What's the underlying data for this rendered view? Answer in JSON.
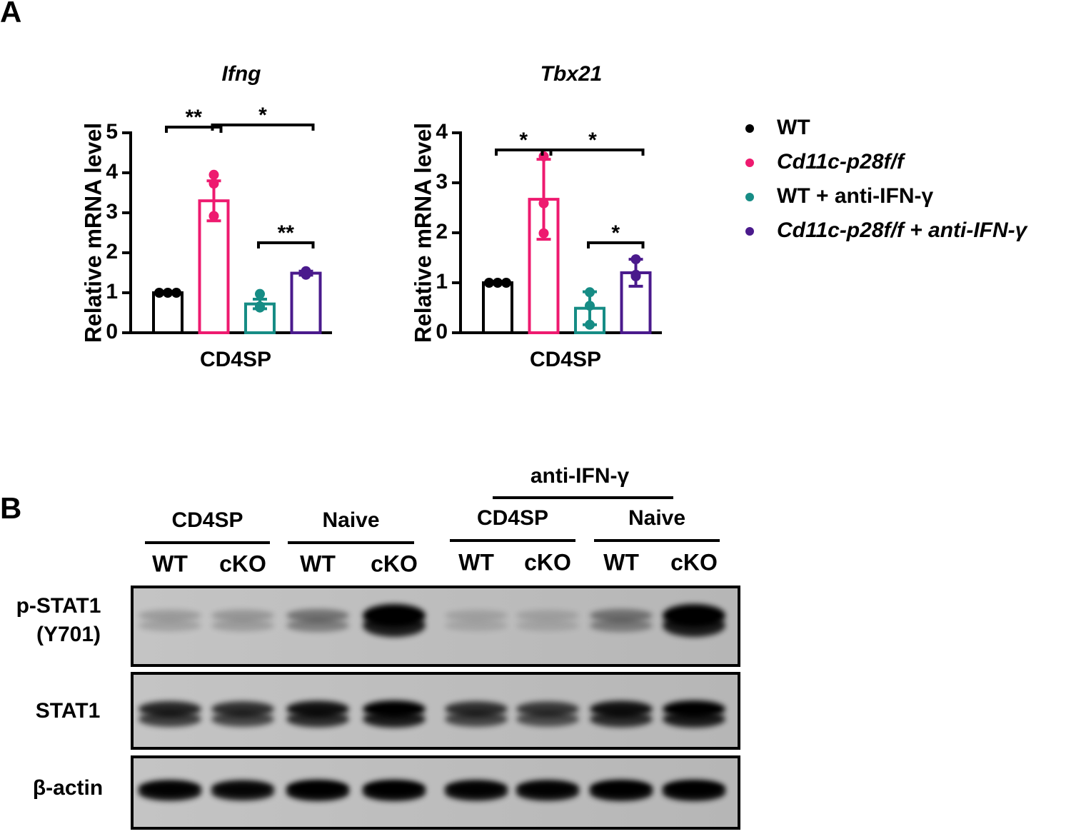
{
  "panel_a": {
    "label": "A"
  },
  "chart_data": [
    {
      "type": "bar",
      "title": "Ifng",
      "y_label": "Relative mRNA level",
      "categories": [
        "CD4SP"
      ],
      "ylim": [
        0,
        5
      ],
      "yticks": [
        0,
        1,
        2,
        3,
        4,
        5
      ],
      "annotations": [
        "**",
        "*",
        "**"
      ],
      "series": [
        {
          "name": "WT",
          "color": "#000000",
          "values": [
            1.0
          ],
          "errors": [
            0
          ],
          "points": [
            [
              1.0,
              1.0,
              1.0
            ]
          ]
        },
        {
          "name": "Cd11c-p28f/f",
          "color": "#ee1a6f",
          "values": [
            3.3
          ],
          "errors": [
            0.5
          ],
          "points": [
            [
              3.95,
              3.73,
              2.92
            ]
          ]
        },
        {
          "name": "WT + anti-IFN-γ",
          "color": "#168c85",
          "values": [
            0.72
          ],
          "errors": [
            0.12
          ],
          "points": [
            [
              0.97,
              0.66,
              0.63
            ]
          ]
        },
        {
          "name": "Cd11c-p28f/f + anti-IFN-γ",
          "color": "#4a1a8c",
          "values": [
            1.49
          ],
          "errors": [
            0.05
          ],
          "points": [
            [
              1.54,
              1.5,
              1.45
            ]
          ]
        }
      ]
    },
    {
      "type": "bar",
      "title": "Tbx21",
      "y_label": "Relative mRNA level",
      "categories": [
        "CD4SP"
      ],
      "ylim": [
        0,
        4
      ],
      "yticks": [
        0,
        1,
        2,
        3,
        4
      ],
      "annotations": [
        "*",
        "*",
        "*"
      ],
      "series": [
        {
          "color": "#000000",
          "values": [
            1.0
          ],
          "errors": [
            0
          ],
          "points": [
            [
              1.0,
              1.0,
              1.0
            ]
          ]
        },
        {
          "color": "#ee1a6f",
          "values": [
            2.67
          ],
          "errors": [
            0.8
          ],
          "points": [
            [
              3.53,
              2.59,
              1.99
            ]
          ]
        },
        {
          "color": "#168c85",
          "values": [
            0.49
          ],
          "errors": [
            0.33
          ],
          "points": [
            [
              0.81,
              0.54,
              0.16
            ]
          ]
        },
        {
          "color": "#4a1a8c",
          "values": [
            1.2
          ],
          "errors": [
            0.27
          ],
          "points": [
            [
              1.47,
              1.16,
              1.13
            ]
          ]
        }
      ]
    }
  ],
  "panel_b": {
    "label": "B",
    "treatment": "anti-IFN-γ",
    "groups": [
      "CD4SP",
      "Naive",
      "CD4SP",
      "Naive"
    ],
    "lanes": [
      "WT",
      "cKO",
      "WT",
      "cKO",
      "WT",
      "cKO",
      "WT",
      "cKO"
    ],
    "rows": [
      [
        "p-STAT1",
        "(Y701)"
      ],
      [
        "STAT1"
      ],
      [
        "β-actin"
      ]
    ]
  }
}
